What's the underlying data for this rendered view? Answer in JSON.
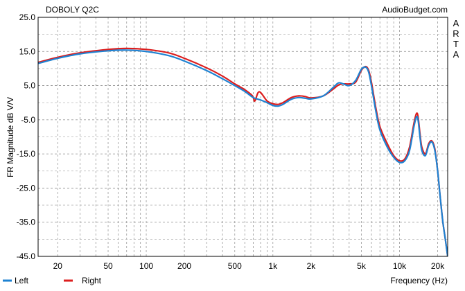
{
  "chart_data": {
    "type": "line",
    "title": "DOBOLY Q2C",
    "watermark": "AudioBudget.com",
    "side_label": "ARTA",
    "xlabel": "Frequency (Hz)",
    "ylabel": "FR Magnitude dB V/V",
    "x_scale": "log",
    "xlim": [
      14,
      24000
    ],
    "ylim": [
      -45,
      25
    ],
    "x_ticks": [
      20,
      50,
      100,
      200,
      500,
      1000,
      2000,
      5000,
      10000,
      20000
    ],
    "x_tick_labels": [
      "20",
      "50",
      "100",
      "200",
      "500",
      "1k",
      "2k",
      "5k",
      "10k",
      "20k"
    ],
    "y_ticks": [
      25,
      15,
      5,
      -5,
      -15,
      -25,
      -35,
      -45
    ],
    "y_tick_labels": [
      "25.0",
      "15.0",
      "5.0",
      "-5.0",
      "-15.0",
      "-25.0",
      "-35.0",
      "-45.0"
    ],
    "grid": true,
    "legend_position": "bottom-left",
    "series": [
      {
        "name": "Left",
        "color": "#1e82d2",
        "x": [
          14,
          20,
          30,
          50,
          70,
          100,
          150,
          200,
          300,
          400,
          500,
          600,
          700,
          800,
          900,
          1000,
          1100,
          1200,
          1400,
          1600,
          1800,
          2000,
          2500,
          3000,
          3300,
          3600,
          4000,
          4500,
          5000,
          5400,
          5700,
          6000,
          6500,
          7000,
          8000,
          9000,
          10000,
          11000,
          12000,
          13000,
          13600,
          14000,
          14500,
          15000,
          16000,
          17000,
          18000,
          19000,
          20000,
          21000,
          22000,
          23000,
          24000
        ],
        "y": [
          11.5,
          13,
          14.3,
          15.2,
          15.4,
          15.0,
          13.8,
          12.2,
          9.4,
          7.0,
          5.0,
          3.3,
          1.5,
          0.8,
          0,
          -0.8,
          -1,
          -0.5,
          1.0,
          1.5,
          1.3,
          1.1,
          2.0,
          4.5,
          5.8,
          5.5,
          5.0,
          6.5,
          9.8,
          10.4,
          9.0,
          5.0,
          -2.5,
          -8,
          -13,
          -16,
          -17.5,
          -17,
          -14,
          -7,
          -4.2,
          -5,
          -10,
          -14,
          -15.5,
          -12.5,
          -11.5,
          -14,
          -20,
          -28,
          -35,
          -40,
          -45
        ]
      },
      {
        "name": "Right",
        "color": "#dc1e1e",
        "x": [
          14,
          20,
          30,
          50,
          70,
          100,
          150,
          200,
          300,
          400,
          500,
          600,
          690,
          720,
          780,
          900,
          1000,
          1100,
          1200,
          1400,
          1600,
          1800,
          2000,
          2500,
          3000,
          3300,
          3600,
          4000,
          4500,
          5000,
          5400,
          5700,
          6000,
          6500,
          7000,
          8000,
          9000,
          10000,
          11000,
          12000,
          13000,
          13600,
          14000,
          14500,
          15000,
          16000,
          17000,
          18000,
          19000,
          20000,
          21000,
          22000,
          23000,
          24000
        ],
        "y": [
          11.8,
          13.3,
          14.6,
          15.6,
          15.9,
          15.6,
          14.6,
          13.0,
          10.2,
          7.8,
          5.5,
          3.8,
          2.0,
          0.5,
          3.2,
          0.5,
          -0.3,
          -0.5,
          0,
          1.5,
          2.0,
          1.8,
          1.4,
          2.0,
          4.0,
          5.2,
          5.5,
          5.5,
          6.0,
          9.5,
          10.6,
          9.5,
          6.0,
          -1.5,
          -7,
          -12,
          -15.5,
          -17,
          -16.5,
          -13,
          -6,
          -3.2,
          -4,
          -9,
          -13,
          -15,
          -12,
          -11.2,
          -13.5,
          -20,
          -28,
          -35,
          -40,
          -45
        ]
      }
    ]
  }
}
